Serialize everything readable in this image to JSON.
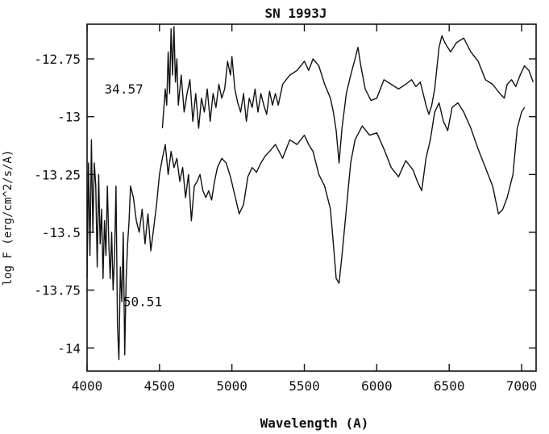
{
  "chart_data": {
    "type": "line",
    "title": "SN 1993J",
    "xlabel": "Wavelength (A)",
    "ylabel": "log F (erg/cm^2/s/A)",
    "xlim": [
      4000,
      7100
    ],
    "ylim": [
      -14.1,
      -12.6
    ],
    "x_ticks": [
      4000,
      4500,
      5000,
      5500,
      6000,
      6500,
      7000
    ],
    "y_ticks": [
      -12.75,
      -13,
      -13.25,
      -13.5,
      -13.75,
      -14
    ],
    "x_tick_labels": [
      "4000",
      "4500",
      "5000",
      "5500",
      "6000",
      "6500",
      "7000"
    ],
    "y_tick_labels": [
      "-12.75",
      "-13",
      "-13.25",
      "-13.5",
      "-13.75",
      "-14"
    ],
    "grid": false,
    "annotations": [
      {
        "text": "34.57",
        "x": 4120,
        "y": -12.9
      },
      {
        "text": "50.51",
        "x": 4250,
        "y": -13.82
      }
    ],
    "series": [
      {
        "label": "34.57",
        "x": [
          4520,
          4540,
          4550,
          4560,
          4570,
          4580,
          4590,
          4600,
          4610,
          4620,
          4630,
          4650,
          4670,
          4690,
          4710,
          4730,
          4750,
          4770,
          4790,
          4810,
          4830,
          4850,
          4870,
          4890,
          4910,
          4930,
          4950,
          4970,
          4990,
          5000,
          5020,
          5040,
          5060,
          5080,
          5100,
          5120,
          5140,
          5160,
          5180,
          5200,
          5220,
          5240,
          5260,
          5280,
          5300,
          5320,
          5350,
          5400,
          5450,
          5500,
          5530,
          5560,
          5600,
          5640,
          5680,
          5700,
          5720,
          5740,
          5760,
          5790,
          5820,
          5850,
          5870,
          5890,
          5920,
          5960,
          6000,
          6050,
          6100,
          6150,
          6200,
          6240,
          6270,
          6300,
          6320,
          6340,
          6360,
          6380,
          6400,
          6430,
          6450,
          6470,
          6490,
          6510,
          6550,
          6600,
          6650,
          6700,
          6750,
          6800,
          6850,
          6880,
          6900,
          6930,
          6960,
          6990,
          7020,
          7050,
          7080
        ],
        "y": [
          -13.05,
          -12.88,
          -12.95,
          -12.72,
          -12.9,
          -12.62,
          -12.82,
          -12.61,
          -12.85,
          -12.75,
          -12.95,
          -12.82,
          -12.98,
          -12.9,
          -12.84,
          -13.02,
          -12.9,
          -13.05,
          -12.92,
          -12.98,
          -12.88,
          -13.02,
          -12.9,
          -12.96,
          -12.86,
          -12.92,
          -12.88,
          -12.76,
          -12.82,
          -12.74,
          -12.88,
          -12.94,
          -12.98,
          -12.9,
          -13.02,
          -12.92,
          -12.96,
          -12.88,
          -12.98,
          -12.9,
          -12.95,
          -12.99,
          -12.89,
          -12.95,
          -12.9,
          -12.95,
          -12.86,
          -12.82,
          -12.8,
          -12.76,
          -12.8,
          -12.75,
          -12.78,
          -12.86,
          -12.92,
          -12.98,
          -13.06,
          -13.2,
          -13.05,
          -12.9,
          -12.82,
          -12.75,
          -12.7,
          -12.78,
          -12.88,
          -12.93,
          -12.92,
          -12.84,
          -12.86,
          -12.88,
          -12.86,
          -12.84,
          -12.87,
          -12.85,
          -12.9,
          -12.95,
          -12.99,
          -12.95,
          -12.88,
          -12.7,
          -12.65,
          -12.68,
          -12.7,
          -12.72,
          -12.68,
          -12.66,
          -12.72,
          -12.76,
          -12.84,
          -12.86,
          -12.9,
          -12.92,
          -12.86,
          -12.84,
          -12.87,
          -12.82,
          -12.78,
          -12.8,
          -12.85
        ]
      },
      {
        "label": "50.51",
        "x": [
          4000,
          4010,
          4020,
          4030,
          4040,
          4050,
          4060,
          4070,
          4080,
          4090,
          4100,
          4110,
          4120,
          4130,
          4140,
          4150,
          4160,
          4170,
          4180,
          4190,
          4200,
          4210,
          4220,
          4230,
          4240,
          4250,
          4260,
          4270,
          4280,
          4290,
          4300,
          4320,
          4340,
          4360,
          4380,
          4400,
          4420,
          4440,
          4460,
          4480,
          4500,
          4520,
          4540,
          4560,
          4580,
          4600,
          4620,
          4640,
          4660,
          4680,
          4700,
          4720,
          4740,
          4760,
          4780,
          4800,
          4820,
          4840,
          4860,
          4880,
          4900,
          4930,
          4960,
          4990,
          5020,
          5050,
          5080,
          5110,
          5140,
          5170,
          5200,
          5230,
          5260,
          5300,
          5350,
          5400,
          5450,
          5500,
          5530,
          5560,
          5600,
          5640,
          5680,
          5700,
          5720,
          5740,
          5760,
          5790,
          5820,
          5850,
          5900,
          5950,
          6000,
          6050,
          6100,
          6150,
          6200,
          6250,
          6280,
          6310,
          6340,
          6370,
          6400,
          6430,
          6460,
          6490,
          6520,
          6560,
          6600,
          6650,
          6700,
          6750,
          6800,
          6840,
          6870,
          6900,
          6940,
          6970,
          7000,
          7020
        ],
        "y": [
          -13.7,
          -13.2,
          -13.6,
          -13.1,
          -13.5,
          -13.2,
          -13.3,
          -13.65,
          -13.25,
          -13.55,
          -13.4,
          -13.7,
          -13.45,
          -13.6,
          -13.3,
          -13.55,
          -13.7,
          -13.5,
          -13.75,
          -13.6,
          -13.3,
          -13.9,
          -14.05,
          -13.65,
          -13.8,
          -13.5,
          -14.03,
          -13.7,
          -13.55,
          -13.45,
          -13.3,
          -13.35,
          -13.45,
          -13.5,
          -13.4,
          -13.55,
          -13.42,
          -13.58,
          -13.48,
          -13.38,
          -13.25,
          -13.18,
          -13.12,
          -13.25,
          -13.15,
          -13.22,
          -13.18,
          -13.28,
          -13.22,
          -13.35,
          -13.25,
          -13.45,
          -13.3,
          -13.28,
          -13.25,
          -13.32,
          -13.35,
          -13.32,
          -13.36,
          -13.28,
          -13.22,
          -13.18,
          -13.2,
          -13.26,
          -13.34,
          -13.42,
          -13.38,
          -13.26,
          -13.22,
          -13.24,
          -13.2,
          -13.17,
          -13.15,
          -13.12,
          -13.18,
          -13.1,
          -13.12,
          -13.08,
          -13.12,
          -13.15,
          -13.25,
          -13.3,
          -13.4,
          -13.55,
          -13.7,
          -13.72,
          -13.6,
          -13.4,
          -13.2,
          -13.1,
          -13.04,
          -13.08,
          -13.07,
          -13.14,
          -13.22,
          -13.26,
          -13.19,
          -13.23,
          -13.28,
          -13.32,
          -13.18,
          -13.1,
          -12.98,
          -12.94,
          -13.02,
          -13.06,
          -12.96,
          -12.94,
          -12.98,
          -13.05,
          -13.14,
          -13.22,
          -13.3,
          -13.42,
          -13.4,
          -13.35,
          -13.25,
          -13.05,
          -12.98,
          -12.96
        ]
      }
    ]
  }
}
